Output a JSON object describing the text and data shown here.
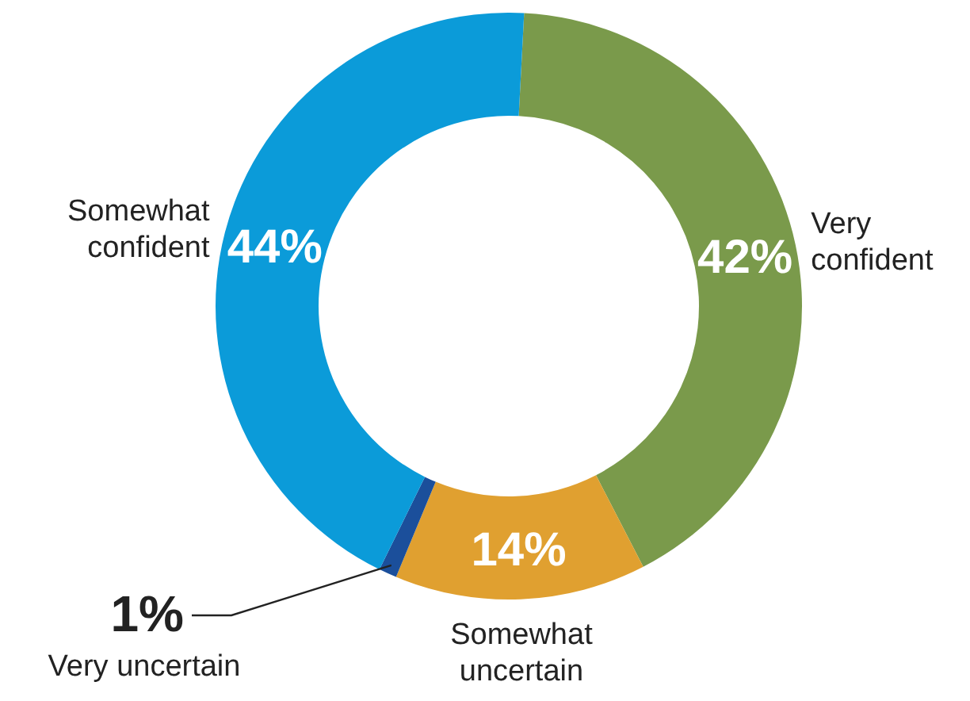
{
  "chart_data": {
    "type": "donut",
    "categories": [
      "Very confident",
      "Somewhat uncertain",
      "Very uncertain",
      "Somewhat confident"
    ],
    "values": [
      42,
      14,
      1,
      44
    ],
    "value_labels": [
      "42%",
      "14%",
      "1%",
      "44%"
    ],
    "colors": [
      "#7a9a4b",
      "#e0a030",
      "#1b4f9b",
      "#0b9bd9"
    ]
  }
}
